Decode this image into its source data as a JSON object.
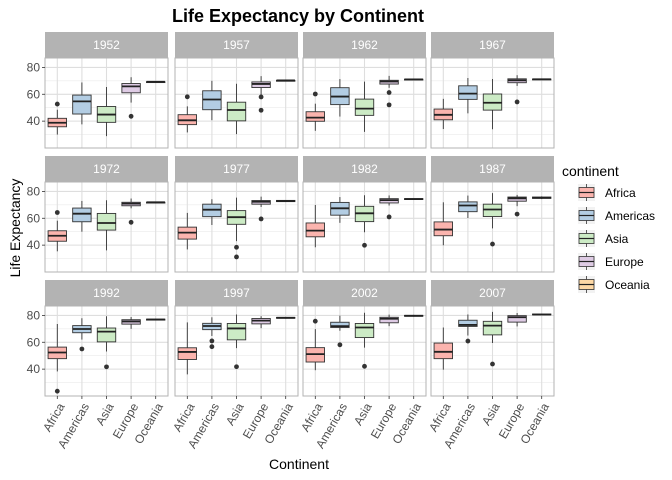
{
  "chart_data": {
    "type": "boxplot",
    "title": "Life Expectancy by Continent",
    "xlabel": "Continent",
    "ylabel": "Life Expectancy",
    "ylim": [
      20,
      87
    ],
    "yticks": [
      40,
      60,
      80
    ],
    "grid": true,
    "legend": {
      "title": "continent",
      "position": "right",
      "items": [
        "Africa",
        "Americas",
        "Asia",
        "Europe",
        "Oceania"
      ]
    },
    "categories": [
      "Africa",
      "Americas",
      "Asia",
      "Europe",
      "Oceania"
    ],
    "colors": {
      "Africa": "#FBB4AE",
      "Americas": "#B3CDE3",
      "Asia": "#CCEBC5",
      "Europe": "#DECBE4",
      "Oceania": "#FED9A6"
    },
    "strip_color": "#B3B3B3",
    "panels": [
      {
        "year": "1952",
        "boxes": [
          {
            "continent": "Africa",
            "min": 30.0,
            "q1": 35.8,
            "median": 38.8,
            "q3": 42.1,
            "max": 48.5,
            "outliers": [
              52.7
            ]
          },
          {
            "continent": "Americas",
            "min": 37.6,
            "q1": 45.3,
            "median": 54.7,
            "q3": 59.4,
            "max": 68.8,
            "outliers": []
          },
          {
            "continent": "Asia",
            "min": 28.8,
            "q1": 39.1,
            "median": 44.9,
            "q3": 50.9,
            "max": 65.4,
            "outliers": []
          },
          {
            "continent": "Europe",
            "min": 53.8,
            "q1": 61.1,
            "median": 65.9,
            "q3": 68.0,
            "max": 72.7,
            "outliers": [
              43.6
            ]
          },
          {
            "continent": "Oceania",
            "min": 69.1,
            "q1": 69.2,
            "median": 69.3,
            "q3": 69.3,
            "max": 69.4,
            "outliers": []
          }
        ]
      },
      {
        "year": "1957",
        "boxes": [
          {
            "continent": "Africa",
            "min": 31.6,
            "q1": 37.4,
            "median": 40.6,
            "q3": 44.8,
            "max": 51.0,
            "outliers": [
              58.1
            ]
          },
          {
            "continent": "Americas",
            "min": 40.7,
            "q1": 48.5,
            "median": 56.1,
            "q3": 62.6,
            "max": 70.0,
            "outliers": []
          },
          {
            "continent": "Asia",
            "min": 30.3,
            "q1": 40.2,
            "median": 48.3,
            "q3": 54.1,
            "max": 67.8,
            "outliers": []
          },
          {
            "continent": "Europe",
            "min": 59.3,
            "q1": 65.0,
            "median": 67.7,
            "q3": 69.2,
            "max": 73.5,
            "outliers": [
              48.1,
              58.0
            ]
          },
          {
            "continent": "Oceania",
            "min": 70.3,
            "q1": 70.3,
            "median": 70.3,
            "q3": 70.3,
            "max": 70.3,
            "outliers": []
          }
        ]
      },
      {
        "year": "1962",
        "boxes": [
          {
            "continent": "Africa",
            "min": 32.8,
            "q1": 39.9,
            "median": 42.6,
            "q3": 47.0,
            "max": 53.0,
            "outliers": [
              60.2
            ]
          },
          {
            "continent": "Americas",
            "min": 43.4,
            "q1": 52.3,
            "median": 58.3,
            "q3": 64.9,
            "max": 71.3,
            "outliers": []
          },
          {
            "continent": "Asia",
            "min": 32.0,
            "q1": 44.3,
            "median": 49.3,
            "q3": 56.4,
            "max": 69.4,
            "outliers": []
          },
          {
            "continent": "Europe",
            "min": 64.8,
            "q1": 67.6,
            "median": 69.5,
            "q3": 70.4,
            "max": 73.7,
            "outliers": [
              52.1,
              61.3
            ]
          },
          {
            "continent": "Oceania",
            "min": 70.9,
            "q1": 71.0,
            "median": 71.1,
            "q3": 71.2,
            "max": 71.2,
            "outliers": []
          }
        ]
      },
      {
        "year": "1967",
        "boxes": [
          {
            "continent": "Africa",
            "min": 34.1,
            "q1": 41.0,
            "median": 44.7,
            "q3": 49.0,
            "max": 56.6,
            "outliers": []
          },
          {
            "continent": "Americas",
            "min": 45.8,
            "q1": 56.2,
            "median": 60.5,
            "q3": 66.3,
            "max": 72.1,
            "outliers": []
          },
          {
            "continent": "Asia",
            "min": 34.0,
            "q1": 48.2,
            "median": 53.7,
            "q3": 60.2,
            "max": 71.4,
            "outliers": []
          },
          {
            "continent": "Europe",
            "min": 66.2,
            "q1": 68.6,
            "median": 70.4,
            "q3": 71.5,
            "max": 74.2,
            "outliers": [
              54.3
            ]
          },
          {
            "continent": "Oceania",
            "min": 71.1,
            "q1": 71.1,
            "median": 71.2,
            "q3": 71.3,
            "max": 71.5,
            "outliers": []
          }
        ]
      },
      {
        "year": "1972",
        "boxes": [
          {
            "continent": "Africa",
            "min": 35.4,
            "q1": 42.9,
            "median": 47.0,
            "q3": 50.7,
            "max": 58.2,
            "outliers": [
              64.3
            ]
          },
          {
            "continent": "Americas",
            "min": 50.0,
            "q1": 57.4,
            "median": 63.4,
            "q3": 67.6,
            "max": 72.9,
            "outliers": []
          },
          {
            "continent": "Asia",
            "min": 36.1,
            "q1": 51.2,
            "median": 56.5,
            "q3": 63.6,
            "max": 73.4,
            "outliers": []
          },
          {
            "continent": "Europe",
            "min": 67.4,
            "q1": 69.3,
            "median": 70.9,
            "q3": 71.9,
            "max": 74.7,
            "outliers": [
              57.0
            ]
          },
          {
            "continent": "Oceania",
            "min": 71.7,
            "q1": 71.8,
            "median": 71.9,
            "q3": 71.9,
            "max": 71.9,
            "outliers": []
          }
        ]
      },
      {
        "year": "1977",
        "boxes": [
          {
            "continent": "Africa",
            "min": 36.8,
            "q1": 44.5,
            "median": 49.3,
            "q3": 53.4,
            "max": 64.0,
            "outliers": []
          },
          {
            "continent": "Americas",
            "min": 55.0,
            "q1": 61.2,
            "median": 66.4,
            "q3": 70.5,
            "max": 74.2,
            "outliers": []
          },
          {
            "continent": "Asia",
            "min": 43.0,
            "q1": 55.5,
            "median": 60.8,
            "q3": 65.7,
            "max": 75.4,
            "outliers": [
              31.2,
              38.4
            ]
          },
          {
            "continent": "Europe",
            "min": 68.4,
            "q1": 70.5,
            "median": 72.3,
            "q3": 73.2,
            "max": 76.1,
            "outliers": [
              59.5
            ]
          },
          {
            "continent": "Oceania",
            "min": 72.2,
            "q1": 72.4,
            "median": 72.8,
            "q3": 73.3,
            "max": 73.5,
            "outliers": []
          }
        ]
      },
      {
        "year": "1982",
        "boxes": [
          {
            "continent": "Africa",
            "min": 38.4,
            "q1": 46.2,
            "median": 50.8,
            "q3": 56.5,
            "max": 69.9,
            "outliers": []
          },
          {
            "continent": "Americas",
            "min": 56.6,
            "q1": 62.3,
            "median": 67.4,
            "q3": 71.8,
            "max": 75.8,
            "outliers": []
          },
          {
            "continent": "Asia",
            "min": 49.6,
            "q1": 57.5,
            "median": 63.7,
            "q3": 68.9,
            "max": 77.1,
            "outliers": [
              39.9
            ]
          },
          {
            "continent": "Europe",
            "min": 69.5,
            "q1": 71.4,
            "median": 73.5,
            "q3": 74.6,
            "max": 77.0,
            "outliers": [
              61.0
            ]
          },
          {
            "continent": "Oceania",
            "min": 73.8,
            "q1": 74.0,
            "median": 74.3,
            "q3": 74.6,
            "max": 74.7,
            "outliers": []
          }
        ]
      },
      {
        "year": "1987",
        "boxes": [
          {
            "continent": "Africa",
            "min": 39.9,
            "q1": 47.0,
            "median": 51.6,
            "q3": 57.3,
            "max": 71.9,
            "outliers": []
          },
          {
            "continent": "Americas",
            "min": 60.2,
            "q1": 64.9,
            "median": 69.5,
            "q3": 72.2,
            "max": 76.9,
            "outliers": []
          },
          {
            "continent": "Asia",
            "min": 52.5,
            "q1": 61.3,
            "median": 66.5,
            "q3": 70.5,
            "max": 78.7,
            "outliers": [
              40.8
            ]
          },
          {
            "continent": "Europe",
            "min": 69.0,
            "q1": 72.7,
            "median": 74.8,
            "q3": 75.8,
            "max": 77.4,
            "outliers": [
              63.1
            ]
          },
          {
            "continent": "Oceania",
            "min": 74.3,
            "q1": 74.8,
            "median": 75.3,
            "q3": 75.8,
            "max": 76.3,
            "outliers": []
          }
        ]
      },
      {
        "year": "1992",
        "boxes": [
          {
            "continent": "Africa",
            "min": 38.3,
            "q1": 47.8,
            "median": 52.4,
            "q3": 56.4,
            "max": 73.6,
            "outliers": [
              23.6
            ]
          },
          {
            "continent": "Americas",
            "min": 62.0,
            "q1": 67.1,
            "median": 69.9,
            "q3": 72.4,
            "max": 77.9,
            "outliers": [
              55.0
            ]
          },
          {
            "continent": "Asia",
            "min": 53.1,
            "q1": 60.3,
            "median": 67.9,
            "q3": 70.6,
            "max": 79.4,
            "outliers": [
              41.7
            ]
          },
          {
            "continent": "Europe",
            "min": 70.0,
            "q1": 73.5,
            "median": 75.5,
            "q3": 76.8,
            "max": 78.8,
            "outliers": []
          },
          {
            "continent": "Oceania",
            "min": 76.3,
            "q1": 76.5,
            "median": 76.9,
            "q3": 77.2,
            "max": 77.6,
            "outliers": []
          }
        ]
      },
      {
        "year": "1997",
        "boxes": [
          {
            "continent": "Africa",
            "min": 36.1,
            "q1": 47.2,
            "median": 52.8,
            "q3": 55.9,
            "max": 74.8,
            "outliers": []
          },
          {
            "continent": "Americas",
            "min": 64.7,
            "q1": 69.4,
            "median": 72.1,
            "q3": 74.1,
            "max": 78.6,
            "outliers": [
              56.7,
              61.0
            ]
          },
          {
            "continent": "Asia",
            "min": 55.6,
            "q1": 61.8,
            "median": 70.3,
            "q3": 74.0,
            "max": 80.7,
            "outliers": [
              41.8
            ]
          },
          {
            "continent": "Europe",
            "min": 70.5,
            "q1": 73.7,
            "median": 76.1,
            "q3": 77.7,
            "max": 79.4,
            "outliers": []
          },
          {
            "continent": "Oceania",
            "min": 77.6,
            "q1": 77.9,
            "median": 78.2,
            "q3": 78.5,
            "max": 78.8,
            "outliers": []
          }
        ]
      },
      {
        "year": "2002",
        "boxes": [
          {
            "continent": "Africa",
            "min": 39.2,
            "q1": 45.3,
            "median": 51.2,
            "q3": 56.0,
            "max": 69.8,
            "outliers": [
              75.7
            ]
          },
          {
            "continent": "Americas",
            "min": 68.6,
            "q1": 71.0,
            "median": 72.0,
            "q3": 74.9,
            "max": 79.8,
            "outliers": [
              58.1
            ]
          },
          {
            "continent": "Asia",
            "min": 56.0,
            "q1": 63.5,
            "median": 71.0,
            "q3": 74.0,
            "max": 82.0,
            "outliers": [
              42.1
            ]
          },
          {
            "continent": "Europe",
            "min": 72.0,
            "q1": 74.5,
            "median": 77.5,
            "q3": 78.6,
            "max": 80.6,
            "outliers": []
          },
          {
            "continent": "Oceania",
            "min": 79.1,
            "q1": 79.4,
            "median": 79.7,
            "q3": 80.0,
            "max": 80.4,
            "outliers": []
          }
        ]
      },
      {
        "year": "2007",
        "boxes": [
          {
            "continent": "Africa",
            "min": 39.6,
            "q1": 47.8,
            "median": 52.9,
            "q3": 59.4,
            "max": 71.0,
            "outliers": []
          },
          {
            "continent": "Americas",
            "min": 65.0,
            "q1": 71.8,
            "median": 72.9,
            "q3": 76.4,
            "max": 80.7,
            "outliers": [
              60.9
            ]
          },
          {
            "continent": "Asia",
            "min": 59.5,
            "q1": 65.5,
            "median": 72.4,
            "q3": 75.6,
            "max": 82.6,
            "outliers": [
              43.8
            ]
          },
          {
            "continent": "Europe",
            "min": 71.8,
            "q1": 75.0,
            "median": 78.6,
            "q3": 79.8,
            "max": 81.8,
            "outliers": []
          },
          {
            "continent": "Oceania",
            "min": 80.2,
            "q1": 80.5,
            "median": 80.7,
            "q3": 81.0,
            "max": 81.2,
            "outliers": []
          }
        ]
      }
    ]
  }
}
